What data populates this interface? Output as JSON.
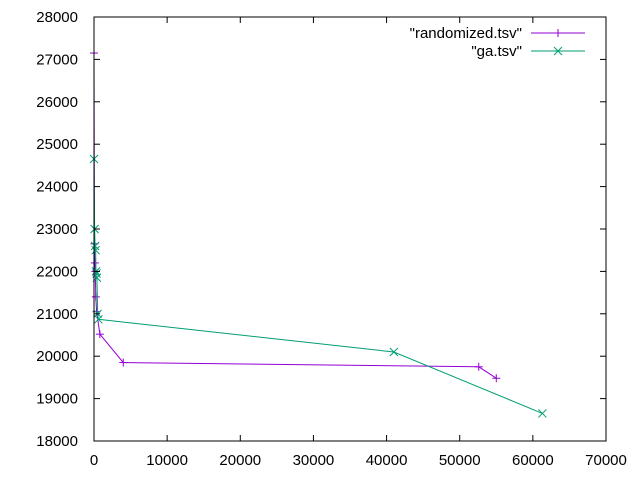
{
  "chart_data": {
    "type": "line",
    "xlim": [
      0,
      70000
    ],
    "ylim": [
      18000,
      28000
    ],
    "x_ticks": [
      0,
      10000,
      20000,
      30000,
      40000,
      50000,
      60000,
      70000
    ],
    "y_ticks": [
      18000,
      19000,
      20000,
      21000,
      22000,
      23000,
      24000,
      25000,
      26000,
      27000,
      28000
    ],
    "x_tick_labels": [
      "0",
      "10000",
      "20000",
      "30000",
      "40000",
      "50000",
      "60000",
      "70000"
    ],
    "y_tick_labels": [
      "18000",
      "19000",
      "20000",
      "21000",
      "22000",
      "23000",
      "24000",
      "25000",
      "26000",
      "27000",
      "28000"
    ],
    "legend_position": "top-right",
    "grid": false,
    "series": [
      {
        "name": "\"randomized.tsv\"",
        "color": "#9400d3",
        "marker": "plus",
        "x": [
          0,
          60,
          120,
          180,
          250,
          350,
          800,
          4000,
          52600,
          55000
        ],
        "y": [
          27150,
          22650,
          22200,
          22000,
          21400,
          21050,
          20520,
          19850,
          19750,
          19480
        ]
      },
      {
        "name": "\"ga.tsv\"",
        "color": "#009e73",
        "marker": "cross",
        "x": [
          0,
          80,
          150,
          220,
          280,
          350,
          400,
          500,
          600,
          41000,
          61300
        ],
        "y": [
          24650,
          23000,
          22600,
          22500,
          22000,
          21950,
          21850,
          21000,
          20870,
          20100,
          18650
        ]
      }
    ]
  }
}
